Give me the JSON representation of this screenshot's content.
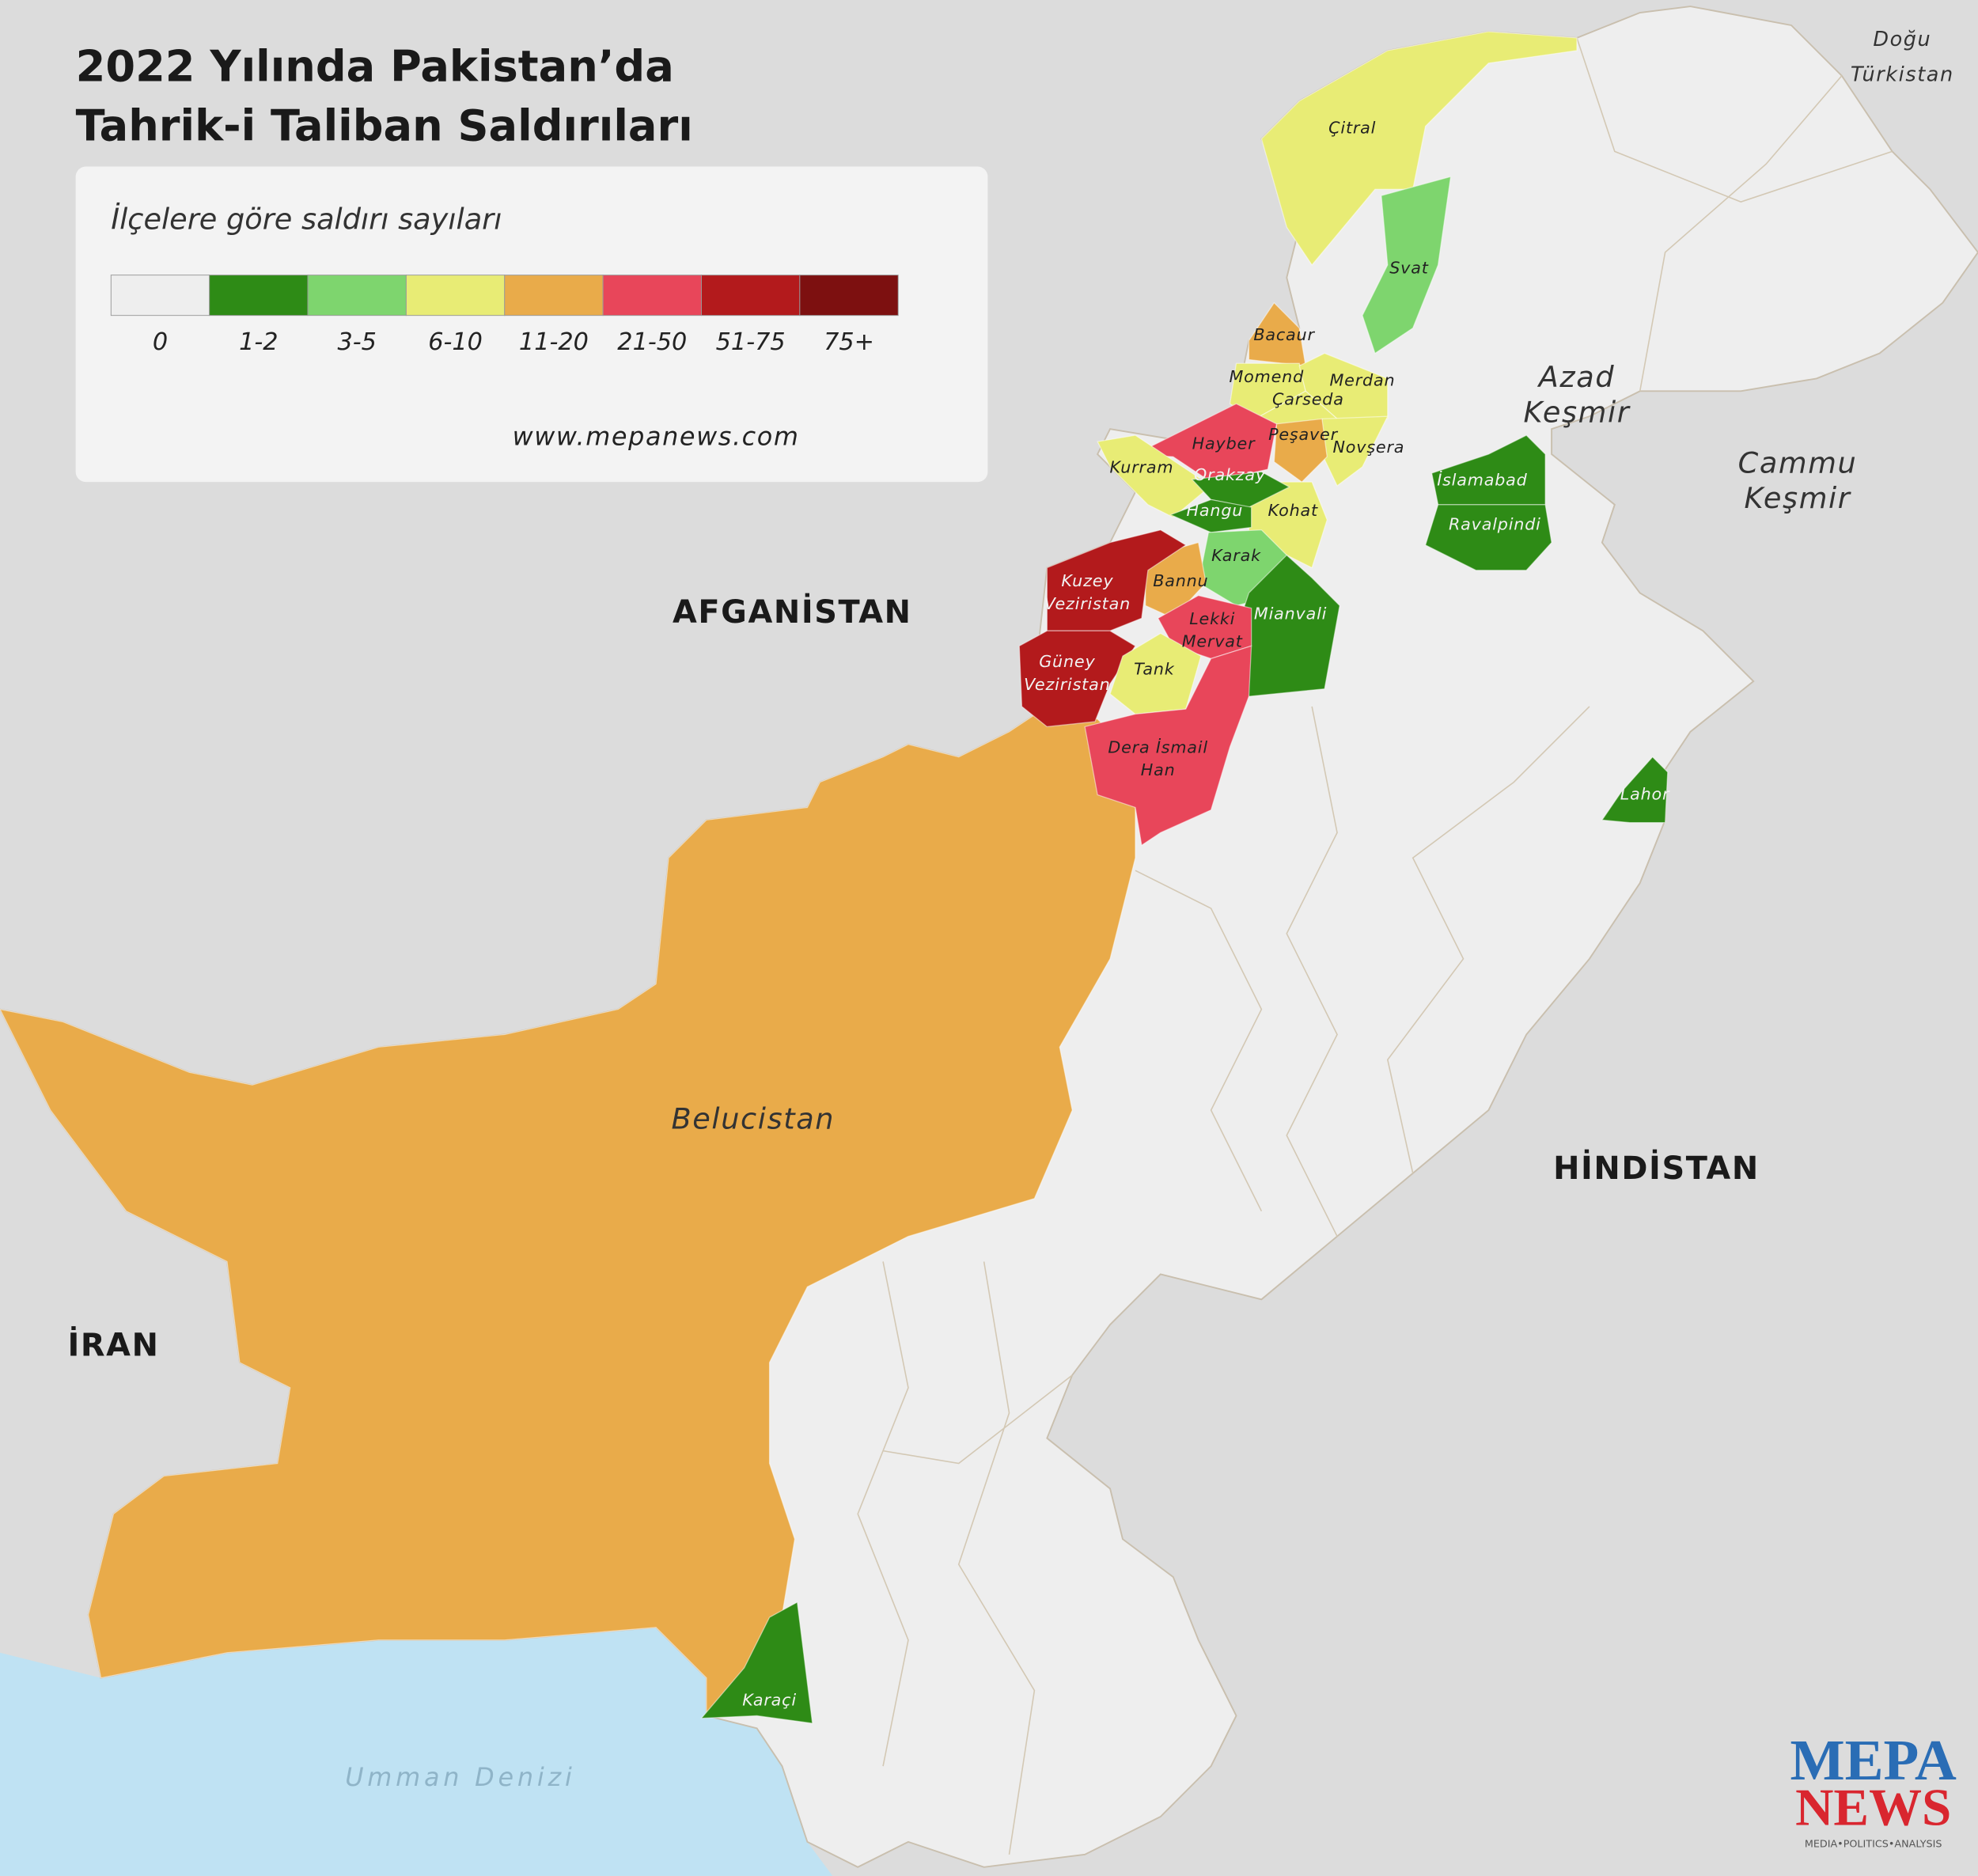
{
  "title": [
    "2022 Yılında Pakistan’da",
    "Tahrik-i Taliban Saldırıları"
  ],
  "legend": {
    "title": "İlçelere göre saldırı sayıları",
    "items": [
      {
        "label": "0",
        "color": "#eeeeee"
      },
      {
        "label": "1-2",
        "color": "#2e8b16"
      },
      {
        "label": "3-5",
        "color": "#7ed56e"
      },
      {
        "label": "6-10",
        "color": "#e8ec75"
      },
      {
        "label": "11-20",
        "color": "#e9ab4a"
      },
      {
        "label": "21-50",
        "color": "#e8465a"
      },
      {
        "label": "51-75",
        "color": "#b31a1c"
      },
      {
        "label": "75+",
        "color": "#7d1010"
      }
    ],
    "source": "www.mepanews.com"
  },
  "countries": [
    "AFGANİSTAN",
    "HİNDİSTAN",
    "İRAN"
  ],
  "regions": [
    [
      "Azad",
      "Keşmir"
    ],
    [
      "Cammu",
      "Keşmir"
    ],
    [
      "Doğu",
      "Türkistan"
    ],
    [
      "Umman Denizi"
    ]
  ],
  "districts": [
    {
      "name": [
        "Belucistan"
      ],
      "color": "#e9ab4a"
    },
    {
      "name": [
        "Çitral"
      ],
      "color": "#e8ec75"
    },
    {
      "name": [
        "Svat"
      ],
      "color": "#7ed56e"
    },
    {
      "name": [
        "Bacaur"
      ],
      "color": "#e9ab4a"
    },
    {
      "name": [
        "Momend"
      ],
      "color": "#e8ec75"
    },
    {
      "name": [
        "Merdan"
      ],
      "color": "#e8ec75"
    },
    {
      "name": [
        "Çarseda"
      ],
      "color": "#e8ec75"
    },
    {
      "name": [
        "Novşera"
      ],
      "color": "#e8ec75"
    },
    {
      "name": [
        "Peşaver"
      ],
      "color": "#e9ab4a"
    },
    {
      "name": [
        "Hayber"
      ],
      "color": "#e8465a"
    },
    {
      "name": [
        "Kurram"
      ],
      "color": "#e8ec75"
    },
    {
      "name": [
        "Kohat"
      ],
      "color": "#e8ec75"
    },
    {
      "name": [
        "Orakzay"
      ],
      "color": "#2e8b16"
    },
    {
      "name": [
        "Hangu"
      ],
      "color": "#2e8b16"
    },
    {
      "name": [
        "Karak"
      ],
      "color": "#7ed56e"
    },
    {
      "name": [
        "Mianvali"
      ],
      "color": "#2e8b16"
    },
    {
      "name": [
        "Bannu"
      ],
      "color": "#e9ab4a"
    },
    {
      "name": [
        "Kuzey",
        "Veziristan"
      ],
      "color": "#b31a1c"
    },
    {
      "name": [
        "Güney",
        "Veziristan"
      ],
      "color": "#b31a1c"
    },
    {
      "name": [
        "Lekki",
        "Mervat"
      ],
      "color": "#e8465a"
    },
    {
      "name": [
        "Tank"
      ],
      "color": "#e8ec75"
    },
    {
      "name": [
        "Dera İsmail",
        "Han"
      ],
      "color": "#e8465a"
    },
    {
      "name": [
        "İslamabad"
      ],
      "color": "#2e8b16"
    },
    {
      "name": [
        "Ravalpindi"
      ],
      "color": "#2e8b16"
    },
    {
      "name": [
        "Lahor"
      ],
      "color": "#2e8b16"
    },
    {
      "name": [
        "Karaçi"
      ],
      "color": "#2e8b16"
    }
  ],
  "logo": {
    "top": "MEPA",
    "bottom": "NEWS",
    "tagline": "MEDIA•POLITICS•ANALYSIS"
  }
}
